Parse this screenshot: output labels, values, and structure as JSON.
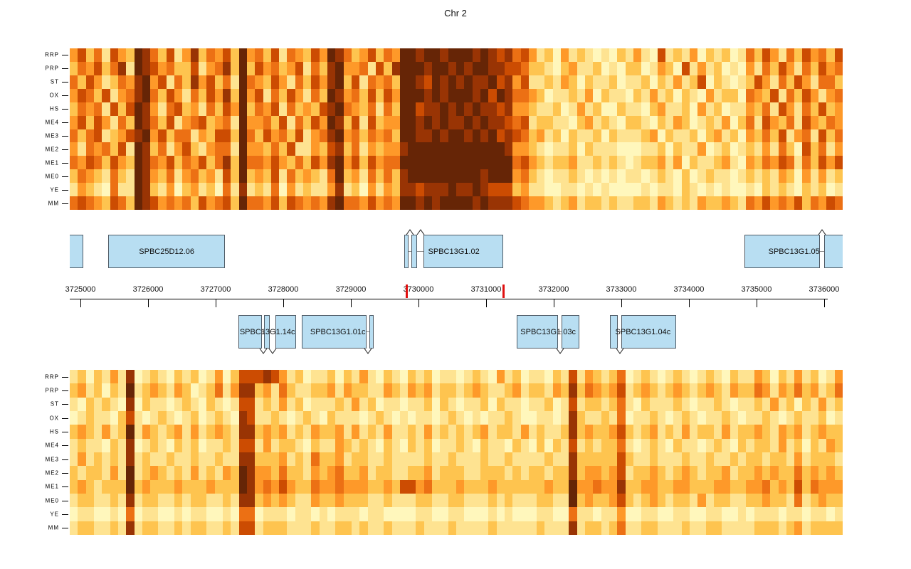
{
  "chart_data": {
    "type": "heatmap",
    "title": "Chr 2",
    "bp_window": [
      3724842,
      3736274
    ],
    "x_axis": {
      "tick_labels": [
        "3725000",
        "3726000",
        "3727000",
        "3728000",
        "3729000",
        "3730000",
        "3731000",
        "3732000",
        "3733000",
        "3734000",
        "3735000",
        "3736000"
      ],
      "tick_interval": 1000
    },
    "markers_bp": [
      3729820,
      3731252
    ],
    "marker_color": "#E01010",
    "gene_fill": "#B8DEF2",
    "gene_border": "#4F5B66",
    "palette": {
      "name": "YlOrBr",
      "colors": [
        "#FFFFE5",
        "#FFF7BC",
        "#FEE391",
        "#FEC44F",
        "#FE9929",
        "#EC7014",
        "#CC4C02",
        "#993404",
        "#662506"
      ]
    },
    "row_labels": [
      "RRP",
      "PRP",
      "ST",
      "OX",
      "HS",
      "ME4",
      "ME3",
      "ME2",
      "ME1",
      "ME0",
      "YE",
      "MM"
    ],
    "heatmap_top": {
      "rows": [
        {
          "label": "RRP",
          "cells": [
            "4635264387",
            "536247354638",
            "453625436487",
            "534635488",
            "788788878767",
            "564231423212132",
            "42162324132312",
            "536425364536"
          ]
        },
        {
          "label": "PRP",
          "cells": [
            "3546357287",
            "645336245738",
            "364534625378",
            "445263788",
            "878878788776",
            "653321342231213",
            "31243162423121",
            "425364253645"
          ]
        },
        {
          "label": "ST",
          "cells": [
            "5364235478",
            "462537463528",
            "543642536478",
            "362545388",
            "768787877867",
            "462232431322312",
            "23132423613212",
            "364253642553"
          ]
        },
        {
          "label": "OX",
          "cells": [
            "4653624578",
            "536425364738",
            "462536425387",
            "453636488",
            "878788878687",
            "554312232413221",
            "32423132142331",
            "543625364245"
          ]
        },
        {
          "label": "HS",
          "cells": [
            "3545263687",
            "425634253648",
            "354625343678",
            "543525388",
            "677878787767",
            "443223124231132",
            "21342231423122",
            "435264253634"
          ]
        },
        {
          "label": "ME4",
          "cells": [
            "4636425387",
            "536245634528",
            "445362536487",
            "362634488",
            "787877878776",
            "562332213423213",
            "32132431232413",
            "526435264354"
          ]
        },
        {
          "label": "ME3",
          "cells": [
            "5356234678",
            "463552436638",
            "536453624578",
            "453545388",
            "778788787867",
            "653423132231322",
            "23413223134231",
            "435362452635"
          ]
        },
        {
          "label": "ME2",
          "cells": [
            "4254536287",
            "352463245528",
            "443536224367",
            "352434478",
            "888888888887",
            "443212231322211",
            "12231322412312",
            "324253163524"
          ]
        },
        {
          "label": "ME1",
          "cells": [
            "5465364387",
            "546354635738",
            "554643536478",
            "463645588",
            "888888888888",
            "564323342232321",
            "23342413223421",
            "435465253646"
          ]
        },
        {
          "label": "ME0",
          "cells": [
            "3543253287",
            "435245342638",
            "343625343258",
            "342535378",
            "888888887888",
            "453212232121212",
            "21232131232212",
            "323243142423"
          ]
        },
        {
          "label": "YE",
          "cells": [
            "2432152287",
            "324134231527",
            "232514232247",
            "231424377",
            "677787787666",
            "342211221212111",
            "12122132121211",
            "213232132312"
          ]
        },
        {
          "label": "MM",
          "cells": [
            "5654365387",
            "645453645638",
            "554636545478",
            "554645488",
            "787888878777",
            "654432342332322",
            "33243232433432",
            "546454635465"
          ]
        }
      ]
    },
    "heatmap_bottom": {
      "rows": [
        {
          "label": "RRP",
          "cells": [
            "2313242",
            "7",
            "1232132312413",
            "66",
            "676423122313242132",
            "132312212321423122132",
            "6",
            "24323",
            "5",
            "123212321232132",
            "243132423124"
          ]
        },
        {
          "label": "PRP",
          "cells": [
            "3423132",
            "8",
            "2343243123524",
            "77",
            "342532233424332243",
            "243423323432234233243",
            "7",
            "35434",
            "6",
            "234323432343243",
            "354243534235"
          ]
        },
        {
          "label": "ST",
          "cells": [
            "2132321",
            "7",
            "1322123213212",
            "66",
            "232423122232423122",
            "122313212231322122312",
            "6",
            "23323",
            "5",
            "213222321223212",
            "232423132423"
          ]
        },
        {
          "label": "OX",
          "cells": [
            "1232213",
            "6",
            "2123212312321",
            "76",
            "223212321322212321",
            "212212321212232112212",
            "7",
            "32232",
            "5",
            "122321232122321",
            "223212322312"
          ]
        },
        {
          "label": "HS",
          "cells": [
            "3432423",
            "8",
            "2432342423432",
            "77",
            "343423243342423242",
            "232423232342332423223",
            "7",
            "34334",
            "6",
            "323423242332423",
            "343243423433"
          ]
        },
        {
          "label": "ME4",
          "cells": [
            "2322132",
            "7",
            "1232132312232",
            "66",
            "242332132243232132",
            "132312232132213213132",
            "6",
            "23233",
            "5",
            "212321322123213",
            "233242313243"
          ]
        },
        {
          "label": "ME3",
          "cells": [
            "2423232",
            "7",
            "2322322322322",
            "77",
            "333423253342332232",
            "222322322232232222322",
            "7",
            "33333",
            "6",
            "322322232232232",
            "332332423332"
          ]
        },
        {
          "label": "ME2",
          "cells": [
            "3233242",
            "8",
            "2343232423243",
            "87",
            "443533243453342332",
            "233423332233323233233",
            "7",
            "34434",
            "6",
            "233432343233423",
            "343433534343"
          ]
        },
        {
          "label": "ME1",
          "cells": [
            "3432333",
            "8",
            "3433343334333",
            "87",
            "454643354454443343",
            "664533343334333333433",
            "8",
            "44544",
            "7",
            "334433443334433",
            "445343635444"
          ]
        },
        {
          "label": "ME0",
          "cells": [
            "2332232",
            "7",
            "2332232332232",
            "77",
            "343432243343332232",
            "223322332223232223322",
            "8",
            "34334",
            "6",
            "323432332423322",
            "334332523433"
          ]
        },
        {
          "label": "YE",
          "cells": [
            "1221121",
            "5",
            "1221121221121",
            "55",
            "122212212122212211",
            "112211221112121112211",
            "5",
            "22122",
            "4",
            "112211221122112",
            "122212212212"
          ]
        },
        {
          "label": "MM",
          "cells": [
            "2332232",
            "7",
            "2332232332232",
            "66",
            "233322232233232232",
            "223222322223222223222",
            "7",
            "23323",
            "5",
            "223322232233222",
            "233323423333"
          ]
        }
      ]
    },
    "genes_forward": [
      {
        "name": "",
        "exons": [
          [
            3724800,
            3725045
          ]
        ]
      },
      {
        "name": "SPBC25D12.06",
        "exons": [
          [
            3725410,
            3727140
          ]
        ]
      },
      {
        "name": "SPBC13G1.02",
        "exons": [
          [
            3729790,
            3729855
          ],
          [
            3729895,
            3729980
          ],
          [
            3730075,
            3731255
          ]
        ]
      },
      {
        "name": "SPBC13G1.05",
        "exons": [
          [
            3734820,
            3735940
          ],
          [
            3736005,
            3736290
          ]
        ]
      }
    ],
    "genes_reverse": [
      {
        "name": "SPBC13G1.14c",
        "exons": [
          [
            3727340,
            3727685
          ],
          [
            3727715,
            3727800
          ],
          [
            3727885,
            3728190
          ]
        ]
      },
      {
        "name": "SPBC13G1.01c",
        "exons": [
          [
            3728275,
            3729230
          ],
          [
            3729275,
            3729340
          ]
        ]
      },
      {
        "name": "SPBC13G1.03c",
        "exons": [
          [
            3731455,
            3732065
          ],
          [
            3732115,
            3732380
          ]
        ]
      },
      {
        "name": "SPBC13G1.04c",
        "exons": [
          [
            3732830,
            3732950
          ],
          [
            3733000,
            3733810
          ]
        ]
      }
    ]
  }
}
